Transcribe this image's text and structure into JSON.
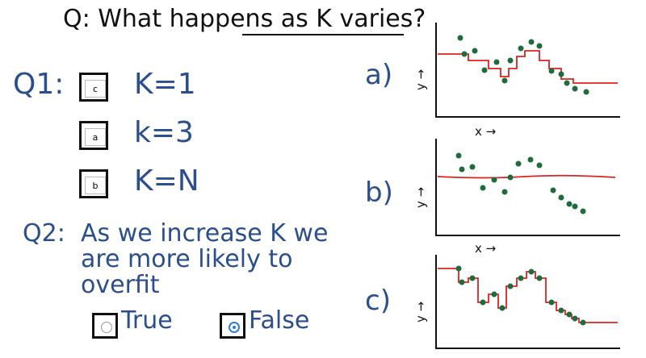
{
  "header": {
    "title": "Q: What happens as K varies?"
  },
  "q1": {
    "label": "Q1:",
    "items": [
      {
        "answer": "c",
        "text": "K=1"
      },
      {
        "answer": "a",
        "text": "k=3"
      },
      {
        "answer": "b",
        "text": "K=N"
      }
    ]
  },
  "q2": {
    "label": "Q2:",
    "question_lines": [
      "As we increase K we",
      "are more likely to",
      "overfit"
    ],
    "options": [
      {
        "label": "True",
        "selected": false
      },
      {
        "label": "False",
        "selected": true
      }
    ]
  },
  "plots": [
    {
      "label": "a)",
      "y_label": "y →",
      "x_label": "x →"
    },
    {
      "label": "b)",
      "y_label": "y →",
      "x_label": "x →"
    },
    {
      "label": "c)",
      "y_label": "y →"
    }
  ]
}
